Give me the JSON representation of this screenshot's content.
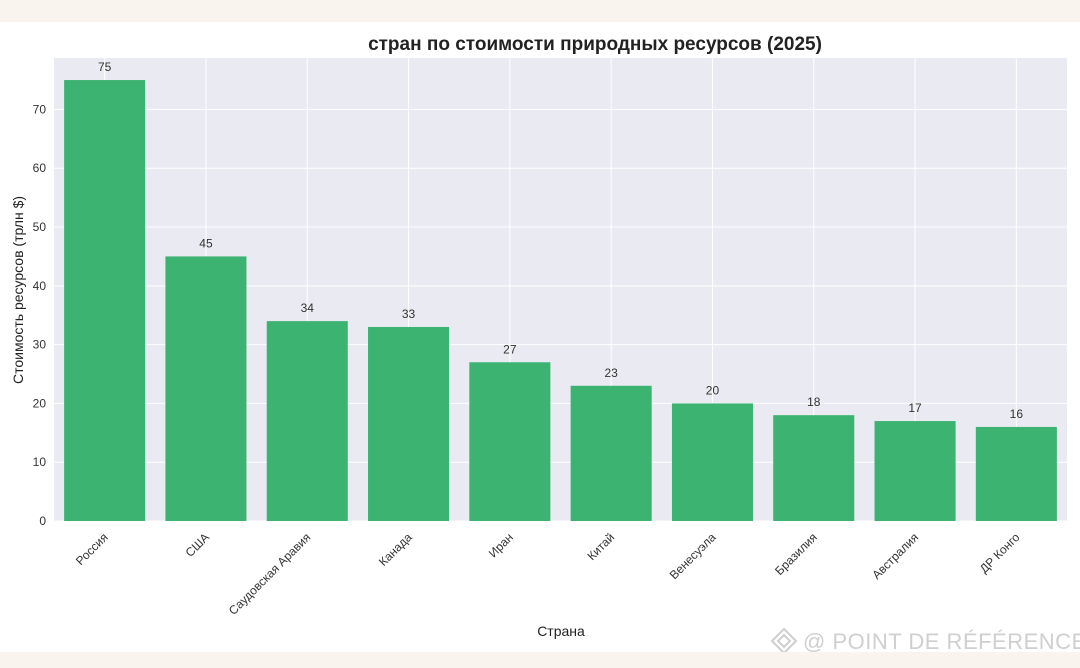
{
  "chart_data": {
    "type": "bar",
    "title": "стран по стоимости природных ресурсов (2025)",
    "xlabel": "Страна",
    "ylabel": "Стоимость ресурсов (трлн $)",
    "categories": [
      "Россия",
      "США",
      "Саудовская Аравия",
      "Канада",
      "Иран",
      "Китай",
      "Венесуэла",
      "Бразилия",
      "Австралия",
      "ДР Конго"
    ],
    "values": [
      75,
      45,
      34,
      33,
      27,
      23,
      20,
      18,
      17,
      16
    ],
    "ylim": [
      0,
      78.75
    ],
    "yticks": [
      0,
      10,
      20,
      30,
      40,
      50,
      60,
      70
    ],
    "grid": true,
    "bar_color": "#3cb371",
    "plot_background": "#eaeaf2"
  },
  "watermark": {
    "icon": "diamond-logo-icon",
    "text": "@ POINT DE RÉFÉRENCE"
  }
}
